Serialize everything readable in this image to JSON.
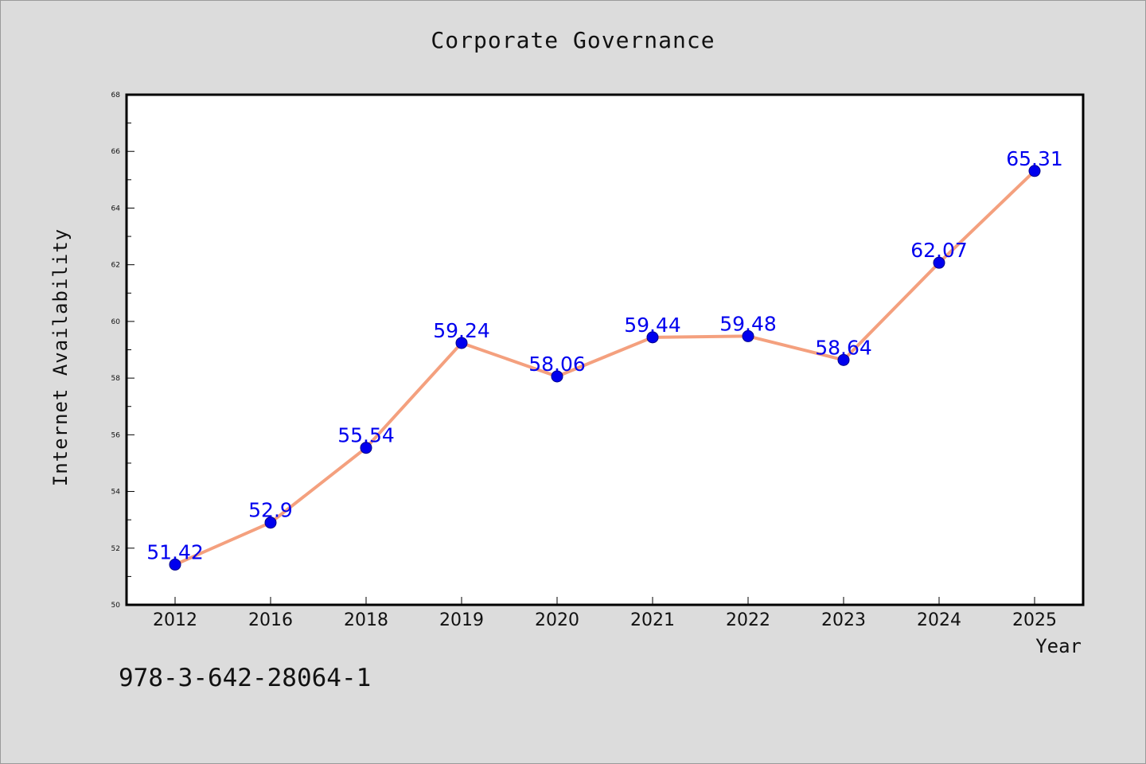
{
  "chart_data": {
    "type": "line",
    "title": "Corporate Governance",
    "xlabel": "Year",
    "ylabel": "Internet Availability",
    "categories": [
      "2012",
      "2016",
      "2018",
      "2019",
      "2020",
      "2021",
      "2022",
      "2023",
      "2024",
      "2025"
    ],
    "series": [
      {
        "values": [
          51.42,
          52.9,
          55.54,
          59.24,
          58.06,
          59.44,
          59.48,
          58.64,
          62.07,
          65.31
        ],
        "value_labels": [
          "51.42",
          "52.9",
          "55.54",
          "59.24",
          "58.06",
          "59.44",
          "59.48",
          "58.64",
          "62.07",
          "65.31"
        ],
        "line_color": "#f4a07e",
        "marker_color": "#0000ee",
        "label_color": "#0000ee"
      }
    ],
    "ylim": [
      50,
      68
    ],
    "yticks": [
      "50",
      "52",
      "54",
      "56",
      "58",
      "60",
      "62",
      "64",
      "66",
      "68"
    ],
    "grid": false,
    "legend": "none"
  },
  "footer_text": "978-3-642-28064-1",
  "colors": {
    "background": "#dcdcdc",
    "plot_background": "#ffffff",
    "axis": "#000000"
  }
}
